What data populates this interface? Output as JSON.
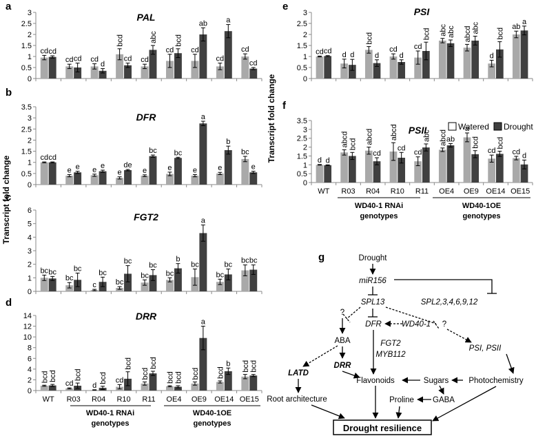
{
  "ylabel": "Transcript fold change",
  "categories": [
    "WT",
    "R03",
    "R04",
    "R10",
    "R11",
    "OE4",
    "OE9",
    "OE14",
    "OE15"
  ],
  "groups": [
    {
      "label_line1": "WD40-1 RNAi",
      "label_line2": "genotypes"
    },
    {
      "label_line1": "WD40-1OE",
      "label_line2": "genotypes"
    }
  ],
  "legend": {
    "watered": "Watered",
    "drought": "Drought"
  },
  "colors": {
    "watered": "#a9a9a9",
    "drought": "#404040",
    "axis": "#888888"
  },
  "chart_data": [
    {
      "id": "a",
      "type": "bar",
      "title": "PAL",
      "ylim": [
        0,
        3
      ],
      "yticks": [
        0,
        0.5,
        1,
        1.5,
        2,
        2.5,
        3
      ],
      "series": [
        {
          "name": "Watered",
          "values": [
            0.95,
            0.55,
            0.55,
            1.1,
            0.55,
            0.8,
            0.8,
            0.55,
            1.0
          ],
          "errors": [
            0.1,
            0.1,
            0.12,
            0.25,
            0.1,
            0.3,
            0.3,
            0.15,
            0.12
          ],
          "labels": [
            "cd",
            "cd",
            "cd",
            "bcd",
            "cd",
            "cd",
            "cd",
            "cd",
            "cd"
          ]
        },
        {
          "name": "Drought",
          "values": [
            0.98,
            0.5,
            0.35,
            0.6,
            1.3,
            1.15,
            2.0,
            2.15,
            0.45
          ],
          "errors": [
            0.05,
            0.2,
            0.1,
            0.1,
            0.2,
            0.2,
            0.3,
            0.3,
            0.05
          ],
          "labels": [
            "cd",
            "cd",
            "d",
            "cd",
            "abc",
            "bcd",
            "ab",
            "a",
            "cd"
          ]
        }
      ]
    },
    {
      "id": "b",
      "type": "bar",
      "title": "DFR",
      "ylim": [
        0,
        3.5
      ],
      "yticks": [
        0,
        0.5,
        1,
        1.5,
        2,
        2.5,
        3,
        3.5
      ],
      "series": [
        {
          "name": "Watered",
          "values": [
            1.0,
            0.4,
            0.42,
            0.3,
            0.4,
            0.48,
            0.4,
            0.5,
            1.15
          ],
          "errors": [
            0.02,
            0.05,
            0.05,
            0.05,
            0.04,
            0.08,
            0.05,
            0.05,
            0.12
          ],
          "labels": [
            "cd",
            "e",
            "e",
            "e",
            "e",
            "e",
            "e",
            "e",
            "bc"
          ]
        },
        {
          "name": "Drought",
          "values": [
            1.0,
            0.55,
            0.6,
            0.65,
            1.28,
            1.2,
            2.75,
            1.55,
            0.55
          ],
          "errors": [
            0.02,
            0.05,
            0.05,
            0.03,
            0.05,
            0.03,
            0.1,
            0.18,
            0.05
          ],
          "labels": [
            "cd",
            "e",
            "e",
            "de",
            "bc",
            "bc",
            "a",
            "b",
            "e"
          ]
        }
      ]
    },
    {
      "id": "c",
      "type": "bar",
      "title": "FGT2",
      "ylim": [
        0,
        6
      ],
      "yticks": [
        0,
        1,
        2,
        3,
        4,
        5,
        6
      ],
      "series": [
        {
          "name": "Watered",
          "values": [
            1.0,
            0.45,
            0.1,
            0.25,
            0.65,
            0.85,
            1.05,
            0.7,
            1.55
          ],
          "errors": [
            0.2,
            0.2,
            0.05,
            0.1,
            0.2,
            0.15,
            0.6,
            0.2,
            0.4
          ],
          "labels": [
            "bc",
            "bc",
            "c",
            "bc",
            "bc",
            "bc",
            "bc",
            "bc",
            "bc"
          ]
        },
        {
          "name": "Drought",
          "values": [
            0.95,
            0.85,
            0.7,
            1.3,
            1.2,
            1.7,
            4.3,
            1.25,
            1.6
          ],
          "errors": [
            0.15,
            0.5,
            0.35,
            0.6,
            0.4,
            0.35,
            0.6,
            0.4,
            0.35
          ],
          "labels": [
            "bc",
            "bc",
            "bc",
            "bc",
            "bc",
            "b",
            "a",
            "bc",
            "bc"
          ]
        }
      ]
    },
    {
      "id": "d",
      "type": "bar",
      "title": "DRR",
      "ylim": [
        0,
        14
      ],
      "yticks": [
        0,
        2,
        4,
        6,
        8,
        10,
        12,
        14
      ],
      "series": [
        {
          "name": "Watered",
          "values": [
            0.9,
            0.4,
            0.1,
            0.7,
            1.3,
            0.8,
            1.3,
            1.6,
            2.6
          ],
          "errors": [
            0.1,
            0.1,
            0.05,
            0.4,
            0.3,
            0.1,
            0.3,
            0.2,
            0.4
          ],
          "labels": [
            "bcd",
            "cd",
            "d",
            "cd",
            "bcd",
            "bcd",
            "bcd",
            "bcd",
            "bcd"
          ]
        },
        {
          "name": "Drought",
          "values": [
            0.95,
            0.9,
            0.5,
            2.2,
            3.2,
            0.7,
            9.8,
            3.6,
            2.8
          ],
          "errors": [
            0.2,
            0.5,
            0.3,
            1.3,
            0.4,
            0.2,
            2.2,
            0.6,
            0.2
          ],
          "labels": [
            "bcd",
            "bcd",
            "bcd",
            "bcd",
            "bcd",
            "bcd",
            "a",
            "b",
            "bcd"
          ]
        }
      ]
    },
    {
      "id": "e",
      "type": "bar",
      "title": "PSI",
      "ylim": [
        0,
        3
      ],
      "yticks": [
        0,
        0.5,
        1,
        1.5,
        2,
        2.5,
        3
      ],
      "series": [
        {
          "name": "Watered",
          "values": [
            1.0,
            0.68,
            1.3,
            1.0,
            0.95,
            1.72,
            1.4,
            0.68,
            2.0
          ],
          "errors": [
            0.02,
            0.2,
            0.15,
            0.12,
            0.3,
            0.1,
            0.15,
            0.15,
            0.15
          ],
          "labels": [
            "cd",
            "d",
            "bcd",
            "cd",
            "cd",
            "abc",
            "abcd",
            "d",
            "ab"
          ]
        },
        {
          "name": "Drought",
          "values": [
            1.02,
            0.62,
            0.7,
            0.75,
            1.25,
            1.6,
            1.72,
            1.32,
            2.18
          ],
          "errors": [
            0.02,
            0.25,
            0.15,
            0.1,
            0.4,
            0.15,
            0.2,
            0.35,
            0.2
          ],
          "labels": [
            "cd",
            "d",
            "d",
            "d",
            "bcd",
            "abc",
            "abc",
            "bcd",
            "a"
          ]
        }
      ]
    },
    {
      "id": "f",
      "type": "bar",
      "title": "PSII",
      "ylim": [
        0,
        3.5
      ],
      "yticks": [
        0,
        0.5,
        1,
        1.5,
        2,
        2.5,
        3,
        3.5
      ],
      "series": [
        {
          "name": "Watered",
          "values": [
            1.0,
            1.7,
            1.8,
            1.75,
            1.2,
            1.85,
            2.55,
            1.35,
            1.38
          ],
          "errors": [
            0.02,
            0.15,
            0.2,
            0.5,
            0.25,
            0.1,
            0.25,
            0.2,
            0.1
          ],
          "labels": [
            "d",
            "abcd",
            "abcd",
            "abcd",
            "cd",
            "abcd",
            "a",
            "cd",
            "cd"
          ]
        },
        {
          "name": "Drought",
          "values": [
            0.98,
            1.5,
            1.2,
            1.4,
            1.98,
            2.1,
            1.6,
            1.62,
            1.02
          ],
          "errors": [
            0.02,
            0.2,
            0.2,
            0.3,
            0.2,
            0.1,
            0.2,
            0.15,
            0.25
          ],
          "labels": [
            "d",
            "bcd",
            "cd",
            "cd",
            "abc",
            "ab",
            "bcd",
            "bcd",
            "d"
          ]
        }
      ]
    }
  ],
  "diagram": {
    "panel_letter": "g",
    "nodes": {
      "drought": "Drought",
      "mir156": "miR156",
      "spl13": "SPL13",
      "spl_others": "SPL2,3,4,6,9,12",
      "q1": "?",
      "q2": "?",
      "aba": "ABA",
      "dfr": "DFR",
      "wd40": "WD40-1",
      "latd": "LATD",
      "drr": "DRR",
      "fgt2": "FGT2",
      "myb112": "MYB112",
      "psi_psii": "PSI, PSII",
      "flavonoids": "Flavonoids",
      "sugars": "Sugars",
      "photochemistry": "Photochemistry",
      "root_architecture": "Root architecture",
      "proline": "Proline",
      "gaba": "GABA",
      "drought_resilience": "Drought resilience"
    }
  }
}
